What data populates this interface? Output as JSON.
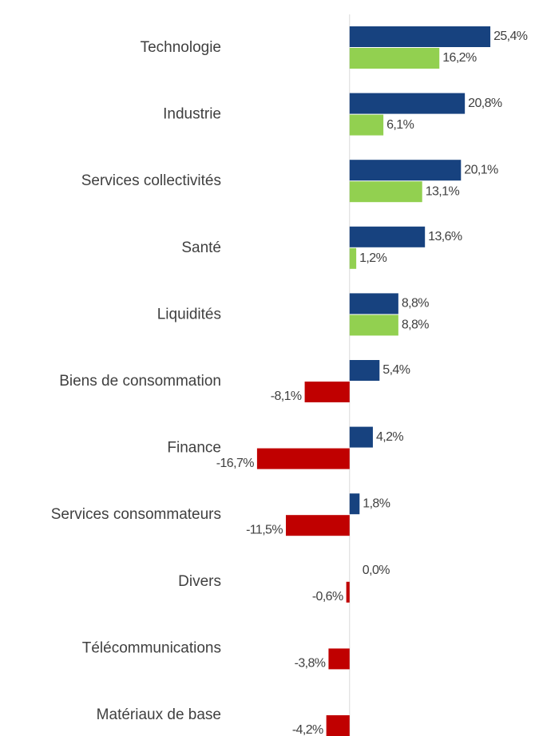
{
  "chart_data": {
    "type": "bar",
    "orientation": "horizontal",
    "categories": [
      "Technologie",
      "Industrie",
      "Services collectivités",
      "Santé",
      "Liquidités",
      "Biens de consommation",
      "Finance",
      "Services consommateurs",
      "Divers",
      "Télécommunications",
      "Matériaux de base"
    ],
    "series": [
      {
        "color": "#17427f",
        "values": [
          25.4,
          20.8,
          20.1,
          13.6,
          8.8,
          5.4,
          4.2,
          1.8,
          0.0,
          null,
          null
        ],
        "value_labels": [
          "25,4%",
          "20,8%",
          "20,1%",
          "13,6%",
          "8,8%",
          "5,4%",
          "4,2%",
          "1,8%",
          "0,0%",
          null,
          null
        ]
      },
      {
        "color": "#92d050",
        "negative_color": "#c00000",
        "values": [
          16.2,
          6.1,
          13.1,
          1.2,
          8.8,
          -8.1,
          -16.7,
          -11.5,
          -0.6,
          -3.8,
          -4.2
        ],
        "value_labels": [
          "16,2%",
          "6,1%",
          "13,1%",
          "1,2%",
          "8,8%",
          "-8,1%",
          "-16,7%",
          "-11,5%",
          "-0,6%",
          "-3,8%",
          "-4,2%"
        ]
      }
    ],
    "xlim": [
      -20,
      30
    ]
  }
}
